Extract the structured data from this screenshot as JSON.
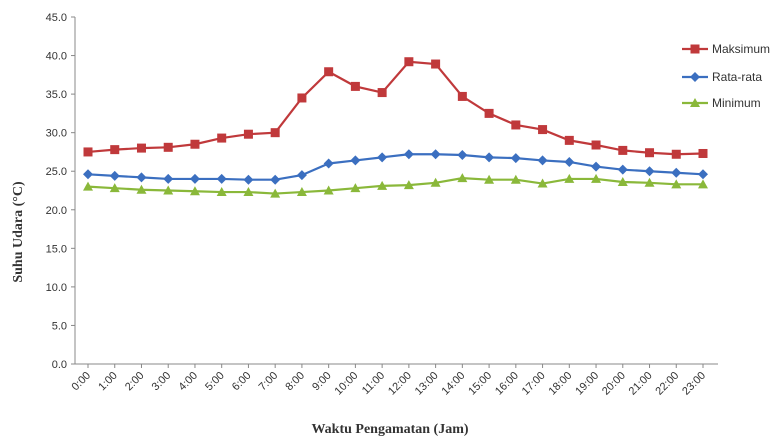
{
  "chart_data": {
    "type": "line",
    "title": "",
    "xlabel": "Waktu Pengamatan  (Jam)",
    "ylabel": "Suhu Udara (°C)",
    "ylim": [
      0,
      45
    ],
    "yticks": [
      "0.0",
      "5.0",
      "10.0",
      "15.0",
      "20.0",
      "25.0",
      "30.0",
      "35.0",
      "40.0",
      "45.0"
    ],
    "categories": [
      "0:00",
      "1:00",
      "2:00",
      "3:00",
      "4:00",
      "5:00",
      "6:00",
      "7:00",
      "8:00",
      "9:00",
      "10:00",
      "11:00",
      "12:00",
      "13:00",
      "14:00",
      "15:00",
      "16:00",
      "17:00",
      "18:00",
      "19:00",
      "20:00",
      "21:00",
      "22:00",
      "23:00"
    ],
    "grid": false,
    "legend_position": "right",
    "series": [
      {
        "name": "Maksimum",
        "color": "#c0393b",
        "marker": "square",
        "values": [
          27.5,
          27.8,
          28.0,
          28.1,
          28.5,
          29.3,
          29.8,
          30.0,
          34.5,
          37.9,
          36.0,
          35.2,
          39.2,
          38.9,
          34.7,
          32.5,
          31.0,
          30.4,
          29.0,
          28.4,
          27.7,
          27.4,
          27.2,
          27.3
        ]
      },
      {
        "name": "Rata-rata",
        "color": "#3b6fc0",
        "marker": "diamond",
        "values": [
          24.6,
          24.4,
          24.2,
          24.0,
          24.0,
          24.0,
          23.9,
          23.9,
          24.5,
          26.0,
          26.4,
          26.8,
          27.2,
          27.2,
          27.1,
          26.8,
          26.7,
          26.4,
          26.2,
          25.6,
          25.2,
          25.0,
          24.8,
          24.6
        ]
      },
      {
        "name": "Minimum",
        "color": "#8ab83a",
        "marker": "triangle",
        "values": [
          23.0,
          22.8,
          22.6,
          22.5,
          22.4,
          22.3,
          22.3,
          22.1,
          22.3,
          22.5,
          22.8,
          23.1,
          23.2,
          23.5,
          24.1,
          23.9,
          23.9,
          23.4,
          24.0,
          24.0,
          23.6,
          23.5,
          23.3,
          23.3
        ]
      }
    ]
  }
}
